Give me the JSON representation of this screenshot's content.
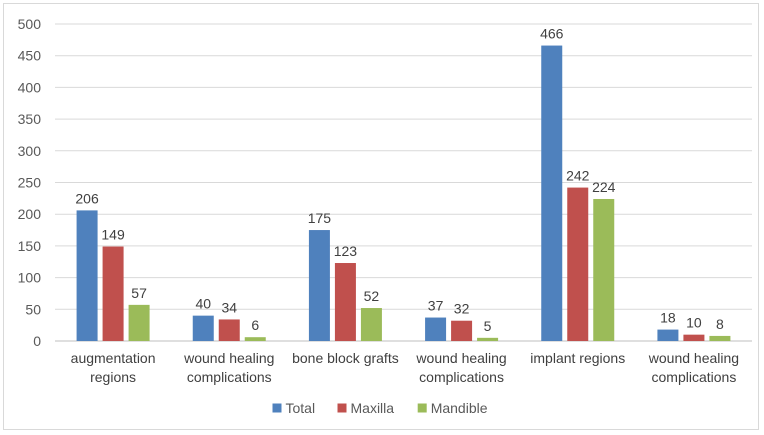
{
  "chart_data": {
    "type": "bar",
    "categories": [
      [
        "augmentation",
        "regions"
      ],
      [
        "wound healing",
        "complications"
      ],
      [
        "bone block grafts"
      ],
      [
        "wound healing",
        "complications"
      ],
      [
        "implant regions"
      ],
      [
        "wound healing",
        "complications"
      ]
    ],
    "series": [
      {
        "name": "Total",
        "color": "#4F81BD",
        "values": [
          206,
          40,
          175,
          37,
          466,
          18
        ]
      },
      {
        "name": "Maxilla",
        "color": "#C0504D",
        "values": [
          149,
          34,
          123,
          32,
          242,
          10
        ]
      },
      {
        "name": "Mandible",
        "color": "#9BBB59",
        "values": [
          57,
          6,
          52,
          5,
          224,
          8
        ]
      }
    ],
    "ylim": [
      0,
      500
    ],
    "yticks": [
      0,
      50,
      100,
      150,
      200,
      250,
      300,
      350,
      400,
      450,
      500
    ],
    "grid": true,
    "legend_position": "bottom"
  }
}
